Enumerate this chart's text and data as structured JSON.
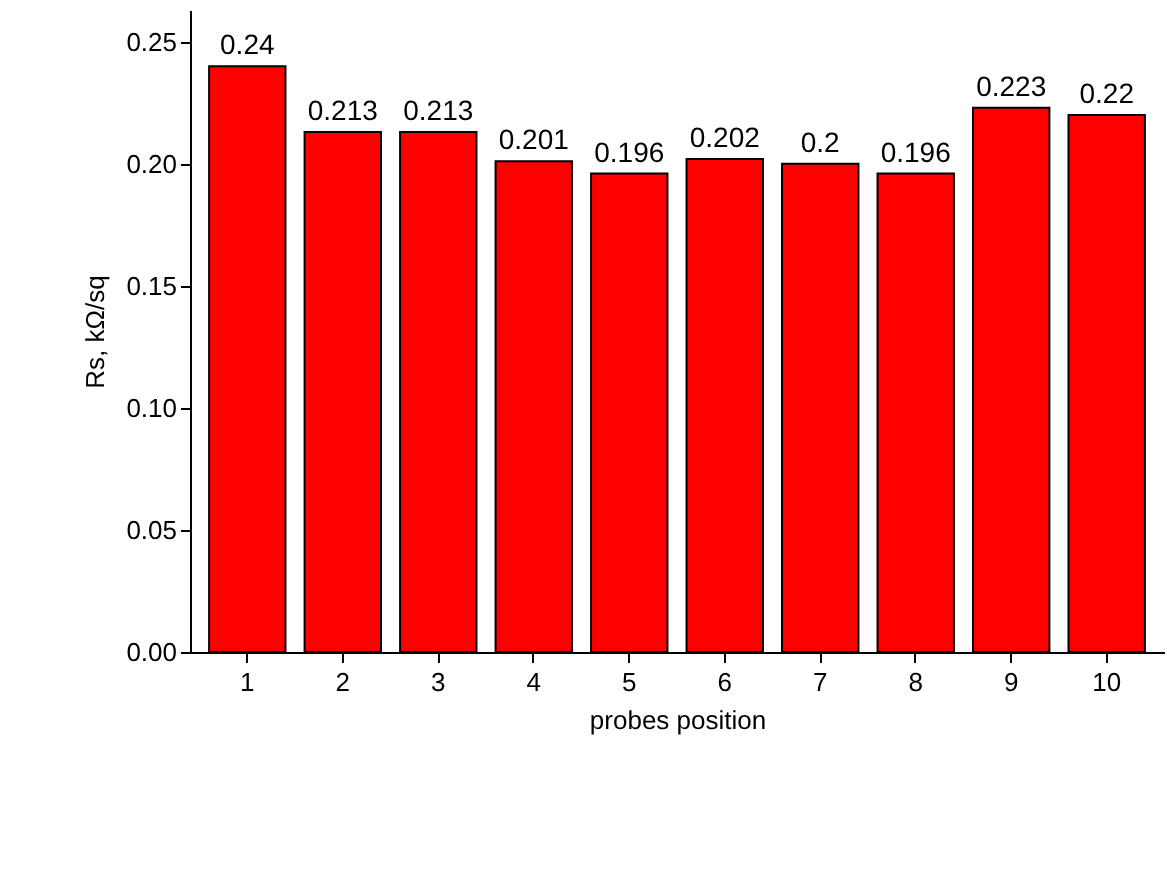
{
  "chart_data": {
    "type": "bar",
    "xlabel": "probes position",
    "ylabel": "Rs, kΩ/sq",
    "categories": [
      "1",
      "2",
      "3",
      "4",
      "5",
      "6",
      "7",
      "8",
      "9",
      "10"
    ],
    "values": [
      0.24,
      0.213,
      0.213,
      0.201,
      0.196,
      0.202,
      0.2,
      0.196,
      0.223,
      0.22
    ],
    "color": "#ff0000",
    "data_labels": true,
    "grid": false,
    "ylim": [
      0,
      0.263
    ],
    "yticks": [
      {
        "value": 0,
        "label": "0.00"
      },
      {
        "value": 0.05,
        "label": "0.05"
      },
      {
        "value": 0.1,
        "label": "0.10"
      },
      {
        "value": 0.15,
        "label": "0.15"
      },
      {
        "value": 0.2,
        "label": "0.20"
      },
      {
        "value": 0.25,
        "label": "0.25"
      }
    ]
  }
}
